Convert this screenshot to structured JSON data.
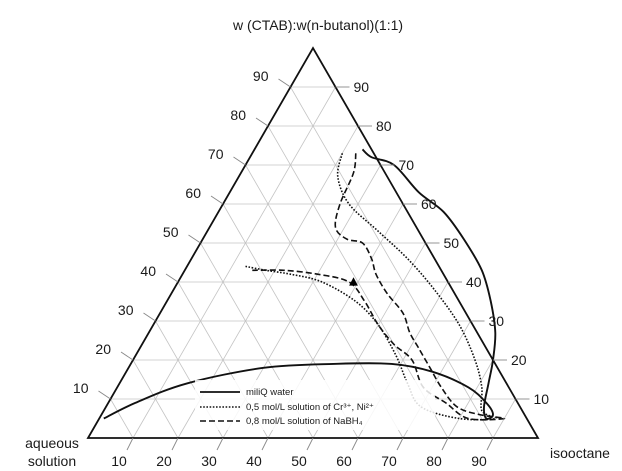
{
  "chart_data": {
    "type": "ternary",
    "title": "",
    "apex_labels": {
      "top": "w (CTAB):w(n-butanol)(1:1)",
      "left": [
        "aqueous",
        "solution"
      ],
      "right": "isooctane"
    },
    "ticks": {
      "left_edge": [
        "10",
        "20",
        "30",
        "40",
        "50",
        "60",
        "70",
        "80",
        "90"
      ],
      "right_edge": [
        "90",
        "80",
        "70",
        "60",
        "50",
        "40",
        "30",
        "20",
        "10"
      ],
      "bottom_edge": [
        "10",
        "20",
        "30",
        "40",
        "50",
        "60",
        "70",
        "80",
        "90"
      ]
    },
    "grid": true,
    "grid_step": 10,
    "legend_position": "bottom-center",
    "series": [
      {
        "name": "miliQ water",
        "line_style": "solid",
        "points_isooctane_surfactant": [
          [
            1,
            5
          ],
          [
            6,
            9
          ],
          [
            15,
            14
          ],
          [
            30,
            18
          ],
          [
            45,
            19
          ],
          [
            58,
            19
          ],
          [
            68,
            17
          ],
          [
            78,
            13
          ],
          [
            84,
            9
          ],
          [
            87,
            6
          ],
          [
            86,
            5
          ],
          [
            84,
            8
          ],
          [
            82,
            14
          ],
          [
            80,
            20
          ],
          [
            77,
            27
          ],
          [
            72,
            35
          ],
          [
            66,
            43
          ],
          [
            58,
            51
          ],
          [
            50,
            58
          ],
          [
            42,
            63
          ],
          [
            33,
            70
          ],
          [
            27,
            72
          ],
          [
            24,
            74
          ]
        ]
      },
      {
        "name": "0,5 mol/L solution of Cr³⁺, Ni²⁺",
        "line_style": "dotted",
        "points_isooctane_surfactant": [
          [
            20,
            73
          ],
          [
            22,
            67
          ],
          [
            28,
            60
          ],
          [
            38,
            53
          ],
          [
            48,
            46
          ],
          [
            58,
            38
          ],
          [
            68,
            29
          ],
          [
            76,
            20
          ],
          [
            81,
            13
          ],
          [
            84,
            7
          ],
          [
            88,
            5
          ],
          [
            80,
            5
          ],
          [
            70,
            8
          ],
          [
            64,
            14
          ],
          [
            58,
            21
          ],
          [
            50,
            29
          ],
          [
            42,
            35
          ],
          [
            32,
            40
          ],
          [
            24,
            42
          ],
          [
            18,
            43
          ],
          [
            13,
            44
          ]
        ]
      },
      {
        "name": "0,8 mol/L solution of NaBH₄",
        "line_style": "dashed",
        "points_isooctane_surfactant": [
          [
            23,
            73
          ],
          [
            25,
            68
          ],
          [
            26,
            60
          ],
          [
            28,
            54
          ],
          [
            32,
            51
          ],
          [
            36,
            50
          ],
          [
            40,
            46
          ],
          [
            43,
            42
          ],
          [
            48,
            37
          ],
          [
            54,
            32
          ],
          [
            58,
            27
          ],
          [
            62,
            23
          ],
          [
            67,
            18
          ],
          [
            72,
            13
          ],
          [
            78,
            8
          ],
          [
            84,
            6
          ],
          [
            90,
            5
          ],
          [
            82,
            5
          ],
          [
            75,
            9
          ],
          [
            68,
            13
          ],
          [
            62,
            20
          ],
          [
            56,
            24
          ],
          [
            50,
            29
          ],
          [
            44,
            35
          ],
          [
            38,
            40
          ],
          [
            30,
            42
          ],
          [
            22,
            43
          ],
          [
            15,
            43
          ]
        ]
      }
    ],
    "markers": [
      {
        "shape": "triangle",
        "color": "#000000",
        "point_isooctane_surfactant": [
          39,
          40
        ]
      }
    ]
  }
}
